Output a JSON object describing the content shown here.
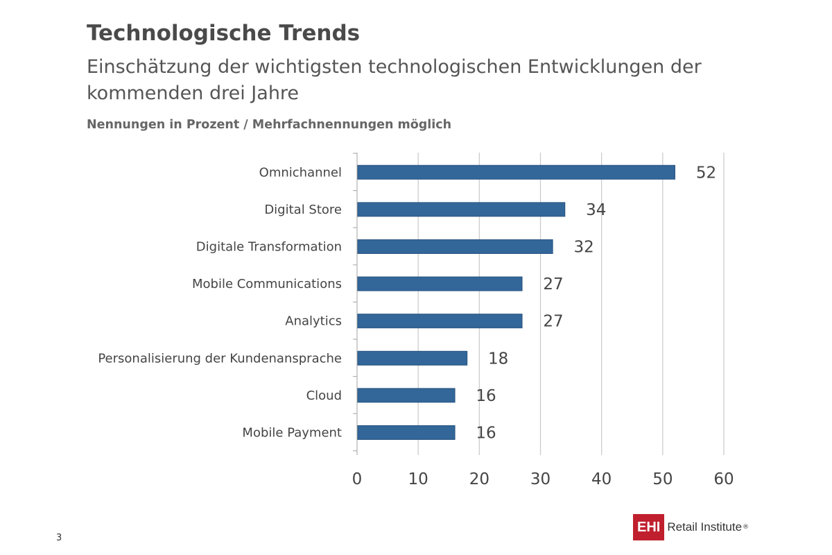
{
  "header": {
    "title": "Technologische Trends",
    "subtitle": "Einschätzung der wichtigsten technologischen Entwicklungen der kommenden drei Jahre",
    "note": "Nennungen in Prozent / Mehrfachnennungen möglich"
  },
  "footer": {
    "page_number": "3",
    "logo_box": "EHI",
    "logo_text": "Retail Institute",
    "logo_reg": "®"
  },
  "colors": {
    "bar": "#336699",
    "bar_border": "#2a5580",
    "grid": "#c8c8c8",
    "logo": "#c0202e"
  },
  "chart_data": {
    "type": "bar",
    "orientation": "horizontal",
    "categories": [
      "Omnichannel",
      "Digital Store",
      "Digitale Transformation",
      "Mobile Communications",
      "Analytics",
      "Personalisierung der Kundenansprache",
      "Cloud",
      "Mobile Payment"
    ],
    "values": [
      52,
      34,
      32,
      27,
      27,
      18,
      16,
      16
    ],
    "xlim": [
      0,
      60
    ],
    "xticks": [
      0,
      10,
      20,
      30,
      40,
      50,
      60
    ],
    "grid": true,
    "data_labels": true
  }
}
